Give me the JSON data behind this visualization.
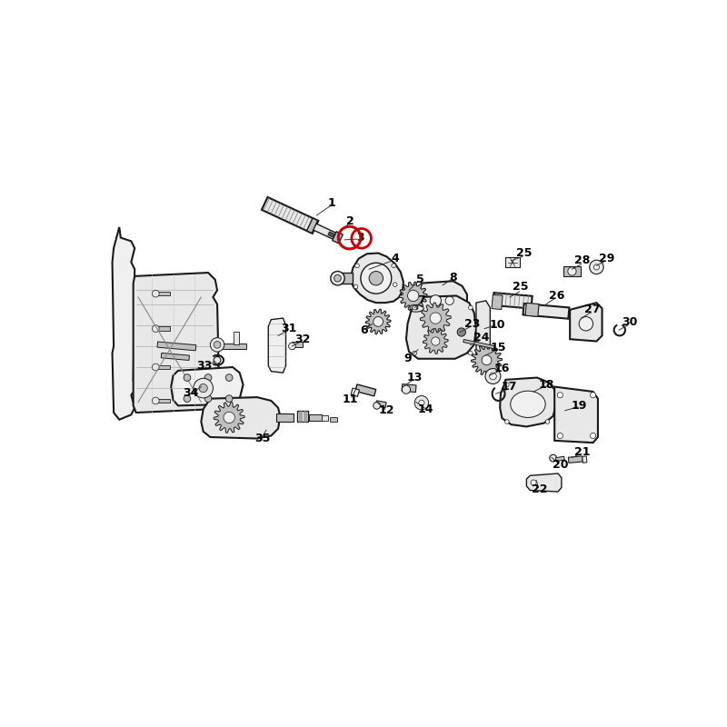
{
  "bg": "#ffffff",
  "lc": "#1a1a1a",
  "lc_light": "#555555",
  "lw": 1.0,
  "lw_thick": 1.5,
  "lw_thin": 0.6,
  "fs": 10,
  "fs_small": 9,
  "red": "#cc0000",
  "gray_fill": "#e8e8e8",
  "gray_mid": "#c0c0c0",
  "gray_dark": "#888888",
  "gray_light": "#f0f0f0"
}
